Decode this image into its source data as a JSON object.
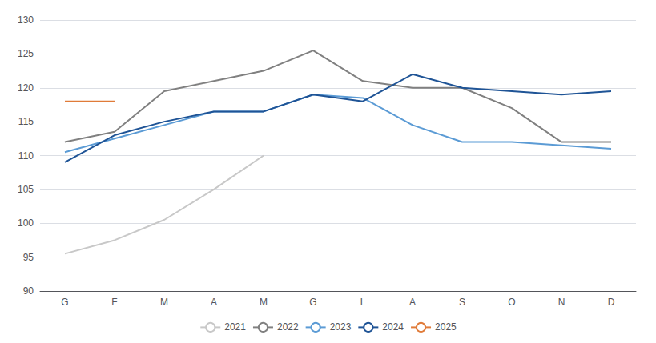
{
  "chart_data": {
    "type": "line",
    "categories": [
      "G",
      "F",
      "M",
      "A",
      "M",
      "G",
      "L",
      "A",
      "S",
      "O",
      "N",
      "D"
    ],
    "series": [
      {
        "name": "2021",
        "color": "#c8c8c8",
        "values": [
          95.5,
          97.5,
          100.5,
          105.0,
          110.0,
          null,
          null,
          null,
          null,
          null,
          null,
          null
        ]
      },
      {
        "name": "2022",
        "color": "#808080",
        "values": [
          112.0,
          113.5,
          119.5,
          121.0,
          122.5,
          125.5,
          121.0,
          120.0,
          120.0,
          117.0,
          112.0,
          112.0
        ]
      },
      {
        "name": "2023",
        "color": "#5b9bd5",
        "values": [
          110.5,
          112.5,
          114.5,
          116.5,
          116.5,
          119.0,
          118.5,
          114.5,
          112.0,
          112.0,
          111.5,
          111.0
        ]
      },
      {
        "name": "2024",
        "color": "#1f5496",
        "values": [
          109.0,
          113.0,
          115.0,
          116.5,
          116.5,
          119.0,
          118.0,
          122.0,
          120.0,
          119.5,
          119.0,
          119.5
        ]
      },
      {
        "name": "2025",
        "color": "#e07b39",
        "values": [
          118.0,
          118.0,
          null,
          null,
          null,
          null,
          null,
          null,
          null,
          null,
          null,
          null
        ]
      }
    ],
    "ylim": [
      90,
      130
    ],
    "yticks": [
      90,
      95,
      100,
      105,
      110,
      115,
      120,
      125,
      130
    ],
    "grid": true,
    "legend": "bottom"
  }
}
